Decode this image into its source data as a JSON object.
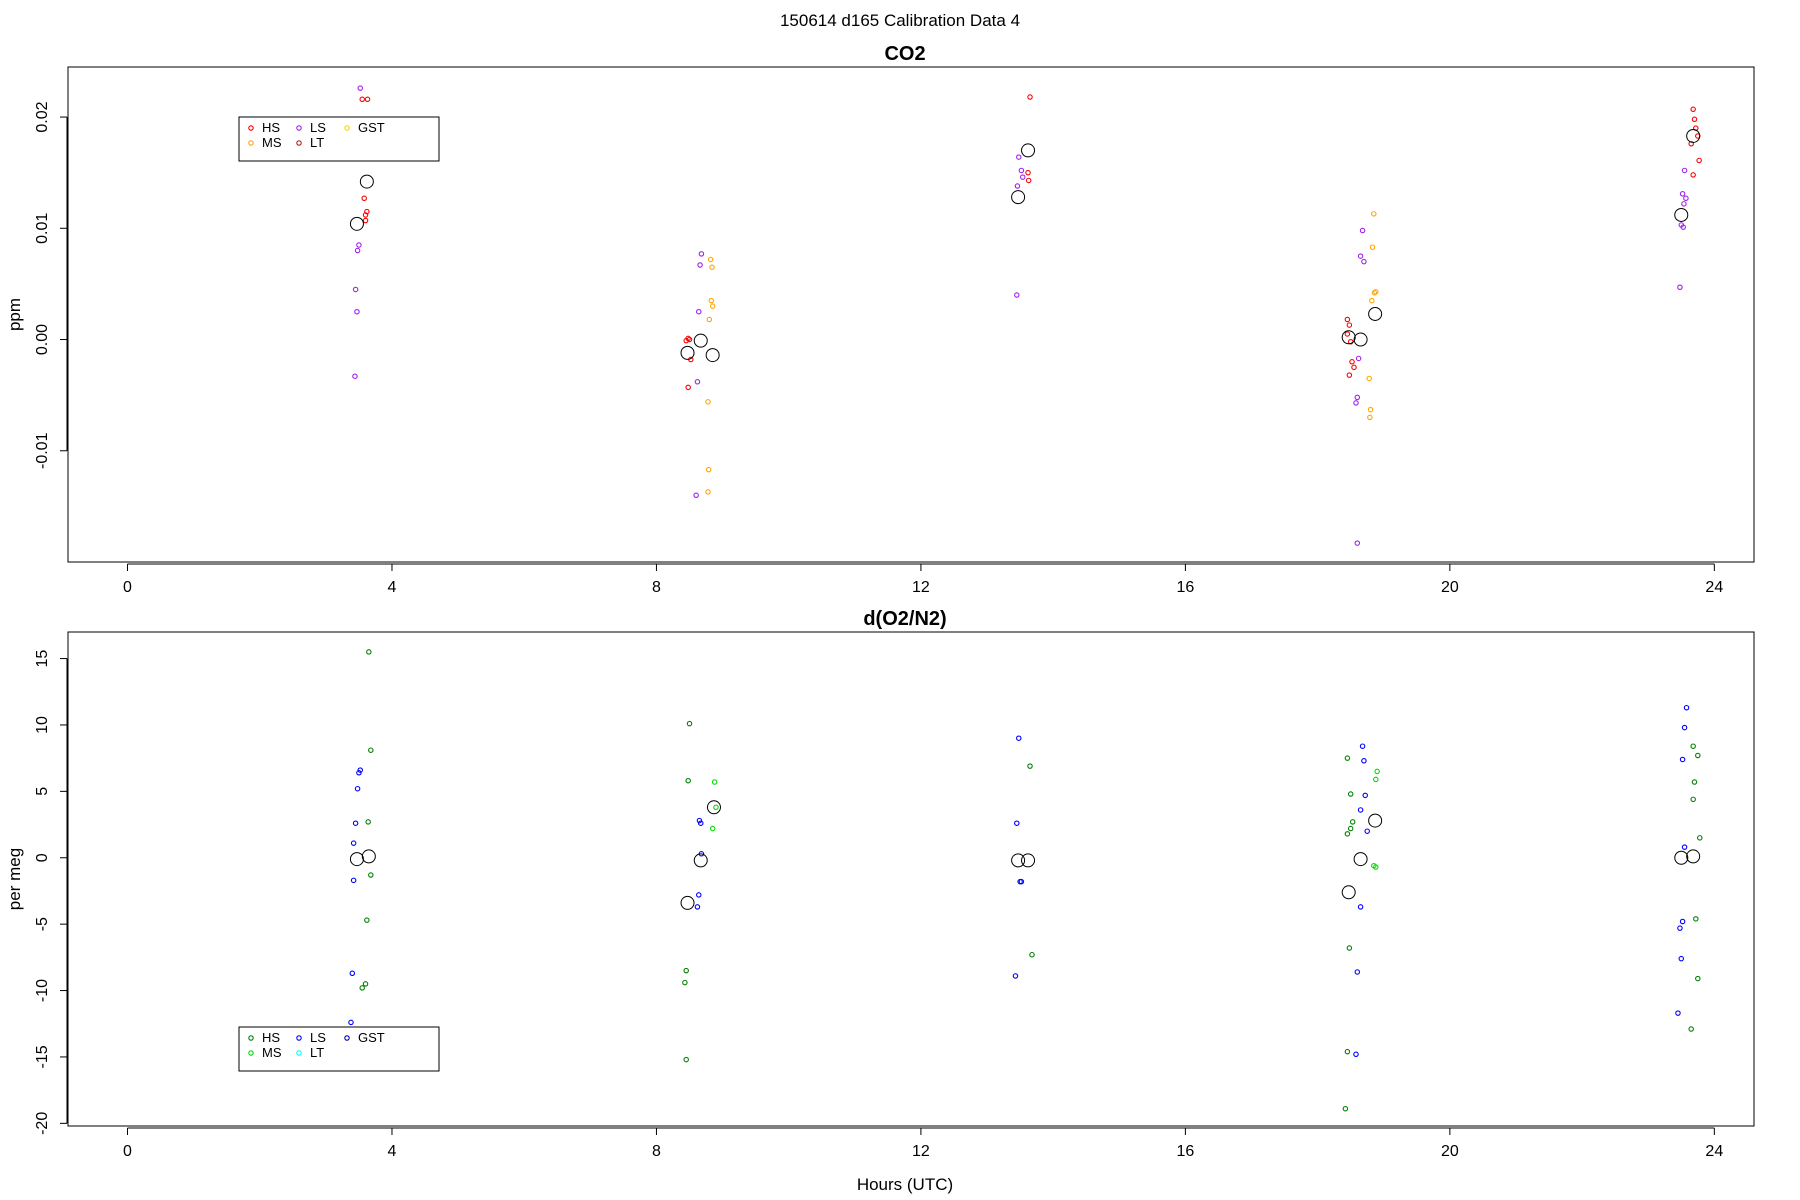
{
  "figure": {
    "title": "150614   d165   Calibration Data 4",
    "xlabel": "Hours (UTC)"
  },
  "colors": {
    "HS_co2": "#ff0000",
    "MS_co2": "#ffa500",
    "LS_co2": "#a020f0",
    "LT_co2": "#b22222",
    "GST_co2": "#ffd700",
    "HS_o2": "#008000",
    "MS_o2": "#00dd00",
    "LS_o2": "#0000ff",
    "LT_o2": "#00ffff",
    "GST_o2": "#0000aa",
    "mean_marker": "#000000"
  },
  "chart_data": [
    {
      "id": "co2",
      "type": "scatter",
      "title": "CO2",
      "xlabel": "",
      "ylabel": "ppm",
      "xlim": [
        -0.9,
        24.6
      ],
      "ylim": [
        -0.02,
        0.0245
      ],
      "xticks": [
        0,
        4,
        8,
        12,
        16,
        20,
        24
      ],
      "yticks": [
        -0.01,
        0.0,
        0.01,
        0.02
      ],
      "ytick_labels": [
        "-0.01",
        "0.00",
        "0.01",
        "0.02"
      ],
      "legend": {
        "position": "top-left",
        "entries": [
          {
            "label": "HS",
            "color_key": "HS_co2"
          },
          {
            "label": "MS",
            "color_key": "MS_co2"
          },
          {
            "label": "LS",
            "color_key": "LS_co2"
          },
          {
            "label": "LT",
            "color_key": "LT_co2"
          },
          {
            "label": "GST",
            "color_key": "GST_co2"
          }
        ]
      },
      "series": [
        {
          "name": "HS",
          "color_key": "HS_co2",
          "points": [
            [
              3.55,
              0.0216
            ],
            [
              3.63,
              0.0216
            ],
            [
              3.62,
              0.0115
            ],
            [
              3.6,
              0.0112
            ],
            [
              3.6,
              0.0107
            ],
            [
              3.58,
              0.0127
            ],
            [
              8.48,
              0.0001
            ],
            [
              8.5,
              0.0
            ],
            [
              8.45,
              -0.0001
            ],
            [
              8.48,
              -0.0043
            ],
            [
              8.52,
              -0.0018
            ],
            [
              13.65,
              0.0218
            ],
            [
              13.62,
              0.015
            ],
            [
              13.63,
              0.0143
            ],
            [
              18.45,
              0.0018
            ],
            [
              18.48,
              0.0013
            ],
            [
              18.45,
              0.0005
            ],
            [
              18.5,
              -0.0002
            ],
            [
              18.52,
              -0.002
            ],
            [
              18.55,
              -0.0025
            ],
            [
              18.48,
              -0.0032
            ],
            [
              23.68,
              0.0207
            ],
            [
              23.7,
              0.0198
            ],
            [
              23.72,
              0.019
            ],
            [
              23.75,
              0.0183
            ],
            [
              23.65,
              0.0176
            ],
            [
              23.77,
              0.0161
            ],
            [
              23.68,
              0.0148
            ]
          ]
        },
        {
          "name": "MS",
          "color_key": "MS_co2",
          "points": [
            [
              8.82,
              0.0072
            ],
            [
              8.84,
              0.0065
            ],
            [
              8.83,
              0.0035
            ],
            [
              8.85,
              0.003
            ],
            [
              8.8,
              0.0018
            ],
            [
              8.78,
              -0.0056
            ],
            [
              8.79,
              -0.0117
            ],
            [
              8.78,
              -0.0137
            ],
            [
              18.85,
              0.0113
            ],
            [
              18.83,
              0.0083
            ],
            [
              18.88,
              0.0043
            ],
            [
              18.86,
              0.0042
            ],
            [
              18.82,
              0.0035
            ],
            [
              18.78,
              -0.0035
            ],
            [
              18.8,
              -0.0063
            ],
            [
              18.79,
              -0.007
            ]
          ]
        },
        {
          "name": "LS",
          "color_key": "LS_co2",
          "points": [
            [
              3.52,
              0.0226
            ],
            [
              3.5,
              0.0085
            ],
            [
              3.48,
              0.008
            ],
            [
              3.45,
              0.0045
            ],
            [
              3.47,
              0.0025
            ],
            [
              3.44,
              -0.0033
            ],
            [
              8.68,
              0.0077
            ],
            [
              8.66,
              0.0067
            ],
            [
              8.64,
              0.0025
            ],
            [
              8.62,
              -0.0038
            ],
            [
              8.6,
              -0.014
            ],
            [
              13.48,
              0.0164
            ],
            [
              13.52,
              0.0152
            ],
            [
              13.54,
              0.0146
            ],
            [
              13.46,
              0.0138
            ],
            [
              13.45,
              0.004
            ],
            [
              18.68,
              0.0098
            ],
            [
              18.65,
              0.0075
            ],
            [
              18.7,
              0.007
            ],
            [
              18.62,
              -0.0017
            ],
            [
              18.6,
              -0.0052
            ],
            [
              18.58,
              -0.0057
            ],
            [
              18.6,
              -0.0183
            ],
            [
              23.55,
              0.0152
            ],
            [
              23.52,
              0.0131
            ],
            [
              23.57,
              0.0127
            ],
            [
              23.54,
              0.0122
            ],
            [
              23.5,
              0.0103
            ],
            [
              23.53,
              0.0101
            ],
            [
              23.48,
              0.0047
            ]
          ]
        },
        {
          "name": "LT",
          "color_key": "LT_co2",
          "points": []
        },
        {
          "name": "GST",
          "color_key": "GST_co2",
          "points": []
        },
        {
          "name": "mean",
          "color_key": "mean_marker",
          "marker": "large-circle",
          "points": [
            [
              3.47,
              0.0104
            ],
            [
              3.62,
              0.0142
            ],
            [
              8.47,
              -0.0012
            ],
            [
              8.67,
              -0.0001
            ],
            [
              8.85,
              -0.0014
            ],
            [
              13.47,
              0.0128
            ],
            [
              13.62,
              0.017
            ],
            [
              18.47,
              0.0002
            ],
            [
              18.65,
              0.0
            ],
            [
              18.87,
              0.0023
            ],
            [
              23.5,
              0.0112
            ],
            [
              23.68,
              0.0183
            ]
          ]
        }
      ]
    },
    {
      "id": "o2",
      "type": "scatter",
      "title": "d(O2/N2)",
      "xlabel": "Hours (UTC)",
      "ylabel": "per meg",
      "xlim": [
        -0.9,
        24.6
      ],
      "ylim": [
        -20.2,
        17.0
      ],
      "xticks": [
        0,
        4,
        8,
        12,
        16,
        20,
        24
      ],
      "yticks": [
        -20,
        -15,
        -10,
        -5,
        0,
        5,
        10,
        15
      ],
      "ytick_labels": [
        "-20",
        "-15",
        "-10",
        "-5",
        "0",
        "5",
        "10",
        "15"
      ],
      "legend": {
        "position": "bottom-left",
        "entries": [
          {
            "label": "HS",
            "color_key": "HS_o2"
          },
          {
            "label": "MS",
            "color_key": "MS_o2"
          },
          {
            "label": "LS",
            "color_key": "LS_o2"
          },
          {
            "label": "LT",
            "color_key": "LT_o2"
          },
          {
            "label": "GST",
            "color_key": "GST_o2"
          }
        ]
      },
      "series": [
        {
          "name": "HS",
          "color_key": "HS_o2",
          "points": [
            [
              3.65,
              15.5
            ],
            [
              3.68,
              8.1
            ],
            [
              3.64,
              2.7
            ],
            [
              3.68,
              -1.3
            ],
            [
              3.62,
              -4.7
            ],
            [
              3.6,
              -9.5
            ],
            [
              3.55,
              -9.8
            ],
            [
              8.5,
              10.1
            ],
            [
              8.48,
              5.8
            ],
            [
              8.45,
              -8.5
            ],
            [
              8.43,
              -9.4
            ],
            [
              8.45,
              -15.2
            ],
            [
              13.65,
              6.9
            ],
            [
              13.68,
              -7.3
            ],
            [
              18.45,
              7.5
            ],
            [
              18.5,
              4.8
            ],
            [
              18.53,
              2.7
            ],
            [
              18.5,
              2.2
            ],
            [
              18.45,
              1.8
            ],
            [
              18.48,
              -6.8
            ],
            [
              18.45,
              -14.6
            ],
            [
              18.42,
              -18.9
            ],
            [
              23.68,
              8.4
            ],
            [
              23.75,
              7.7
            ],
            [
              23.7,
              5.7
            ],
            [
              23.68,
              4.4
            ],
            [
              23.78,
              1.5
            ],
            [
              23.72,
              -4.6
            ],
            [
              23.75,
              -9.1
            ],
            [
              23.65,
              -12.9
            ]
          ]
        },
        {
          "name": "MS",
          "color_key": "MS_o2",
          "points": [
            [
              8.88,
              5.7
            ],
            [
              8.9,
              3.8
            ],
            [
              8.85,
              2.2
            ],
            [
              18.9,
              6.5
            ],
            [
              18.88,
              5.9
            ],
            [
              18.85,
              -0.6
            ],
            [
              18.88,
              -0.7
            ]
          ]
        },
        {
          "name": "LS",
          "color_key": "LS_o2",
          "points": [
            [
              3.52,
              6.6
            ],
            [
              3.5,
              6.4
            ],
            [
              3.48,
              5.2
            ],
            [
              3.45,
              2.6
            ],
            [
              3.42,
              1.1
            ],
            [
              3.42,
              -1.7
            ],
            [
              3.4,
              -8.7
            ],
            [
              3.38,
              -12.4
            ],
            [
              8.65,
              2.8
            ],
            [
              8.67,
              2.6
            ],
            [
              8.68,
              0.3
            ],
            [
              8.64,
              -2.8
            ],
            [
              8.62,
              -3.7
            ],
            [
              13.48,
              9.0
            ],
            [
              13.45,
              2.6
            ],
            [
              13.52,
              -1.8
            ],
            [
              13.5,
              -1.8
            ],
            [
              13.43,
              -8.9
            ],
            [
              18.68,
              8.4
            ],
            [
              18.7,
              7.3
            ],
            [
              18.72,
              4.7
            ],
            [
              18.65,
              3.6
            ],
            [
              18.75,
              2.0
            ],
            [
              18.65,
              -3.7
            ],
            [
              18.6,
              -8.6
            ],
            [
              18.58,
              -14.8
            ],
            [
              23.58,
              11.3
            ],
            [
              23.55,
              9.8
            ],
            [
              23.52,
              7.4
            ],
            [
              23.55,
              0.8
            ],
            [
              23.52,
              -4.8
            ],
            [
              23.48,
              -5.3
            ],
            [
              23.5,
              -7.6
            ],
            [
              23.45,
              -11.7
            ]
          ]
        },
        {
          "name": "LT",
          "color_key": "LT_o2",
          "points": []
        },
        {
          "name": "GST",
          "color_key": "GST_o2",
          "points": []
        },
        {
          "name": "mean",
          "color_key": "mean_marker",
          "marker": "large-circle",
          "points": [
            [
              3.47,
              -0.1
            ],
            [
              3.65,
              0.1
            ],
            [
              8.47,
              -3.4
            ],
            [
              8.67,
              -0.2
            ],
            [
              8.87,
              3.8
            ],
            [
              13.47,
              -0.2
            ],
            [
              13.62,
              -0.2
            ],
            [
              18.47,
              -2.6
            ],
            [
              18.65,
              -0.1
            ],
            [
              18.87,
              2.8
            ],
            [
              23.5,
              0.0
            ],
            [
              23.68,
              0.1
            ]
          ]
        }
      ]
    }
  ]
}
